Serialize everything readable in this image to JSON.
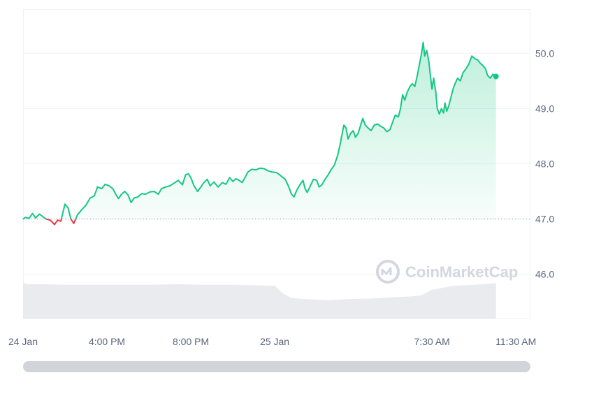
{
  "chart_data": {
    "type": "line",
    "ylim": [
      45.2,
      50.8
    ],
    "yticks": [
      {
        "value": 46.0,
        "label": "46.0"
      },
      {
        "value": 47.0,
        "label": "47.0"
      },
      {
        "value": 48.0,
        "label": "48.0"
      },
      {
        "value": 49.0,
        "label": "49.0"
      },
      {
        "value": 50.0,
        "label": "50.0"
      }
    ],
    "xlim_hours": [
      12.0,
      36.16
    ],
    "xticks": [
      {
        "hour": 12.0,
        "label": "24 Jan"
      },
      {
        "hour": 16.0,
        "label": "4:00 PM"
      },
      {
        "hour": 20.0,
        "label": "8:00 PM"
      },
      {
        "hour": 24.0,
        "label": "25 Jan"
      },
      {
        "hour": 31.5,
        "label": "7:30 AM"
      },
      {
        "hour": 35.5,
        "label": "11:30 AM"
      }
    ],
    "baseline": 47.0,
    "colors": {
      "up": "#16c784",
      "down": "#ea3943",
      "volume": "#e6e8ec",
      "grid": "#eff2f5"
    },
    "price_series": [
      [
        12.0,
        47.0
      ],
      [
        12.12,
        47.03
      ],
      [
        12.28,
        47.01
      ],
      [
        12.45,
        47.1
      ],
      [
        12.6,
        47.02
      ],
      [
        12.78,
        47.09
      ],
      [
        12.95,
        47.04
      ],
      [
        13.1,
        47.0
      ],
      [
        13.3,
        46.98
      ],
      [
        13.5,
        46.9
      ],
      [
        13.65,
        46.98
      ],
      [
        13.8,
        46.96
      ],
      [
        14.0,
        47.27
      ],
      [
        14.15,
        47.2
      ],
      [
        14.28,
        47.0
      ],
      [
        14.42,
        46.92
      ],
      [
        14.6,
        47.08
      ],
      [
        14.8,
        47.17
      ],
      [
        15.0,
        47.25
      ],
      [
        15.2,
        47.38
      ],
      [
        15.4,
        47.42
      ],
      [
        15.55,
        47.58
      ],
      [
        15.75,
        47.55
      ],
      [
        15.92,
        47.63
      ],
      [
        16.1,
        47.6
      ],
      [
        16.28,
        47.55
      ],
      [
        16.45,
        47.43
      ],
      [
        16.55,
        47.37
      ],
      [
        16.7,
        47.45
      ],
      [
        16.85,
        47.5
      ],
      [
        17.0,
        47.44
      ],
      [
        17.15,
        47.3
      ],
      [
        17.3,
        47.38
      ],
      [
        17.48,
        47.4
      ],
      [
        17.65,
        47.46
      ],
      [
        17.85,
        47.45
      ],
      [
        18.05,
        47.49
      ],
      [
        18.25,
        47.5
      ],
      [
        18.45,
        47.45
      ],
      [
        18.6,
        47.55
      ],
      [
        18.8,
        47.58
      ],
      [
        19.0,
        47.6
      ],
      [
        19.2,
        47.65
      ],
      [
        19.4,
        47.7
      ],
      [
        19.6,
        47.62
      ],
      [
        19.75,
        47.8
      ],
      [
        19.88,
        47.82
      ],
      [
        20.0,
        47.75
      ],
      [
        20.15,
        47.6
      ],
      [
        20.32,
        47.5
      ],
      [
        20.48,
        47.58
      ],
      [
        20.6,
        47.65
      ],
      [
        20.78,
        47.72
      ],
      [
        20.92,
        47.6
      ],
      [
        21.1,
        47.67
      ],
      [
        21.3,
        47.58
      ],
      [
        21.5,
        47.66
      ],
      [
        21.68,
        47.63
      ],
      [
        21.85,
        47.75
      ],
      [
        22.0,
        47.68
      ],
      [
        22.15,
        47.73
      ],
      [
        22.3,
        47.7
      ],
      [
        22.45,
        47.66
      ],
      [
        22.58,
        47.75
      ],
      [
        22.72,
        47.85
      ],
      [
        22.9,
        47.9
      ],
      [
        23.1,
        47.89
      ],
      [
        23.3,
        47.92
      ],
      [
        23.5,
        47.91
      ],
      [
        23.7,
        47.87
      ],
      [
        23.9,
        47.85
      ],
      [
        24.1,
        47.84
      ],
      [
        24.3,
        47.78
      ],
      [
        24.5,
        47.72
      ],
      [
        24.65,
        47.6
      ],
      [
        24.8,
        47.45
      ],
      [
        24.92,
        47.4
      ],
      [
        25.05,
        47.52
      ],
      [
        25.2,
        47.62
      ],
      [
        25.35,
        47.7
      ],
      [
        25.45,
        47.55
      ],
      [
        25.55,
        47.48
      ],
      [
        25.7,
        47.6
      ],
      [
        25.85,
        47.72
      ],
      [
        26.0,
        47.7
      ],
      [
        26.12,
        47.58
      ],
      [
        26.25,
        47.62
      ],
      [
        26.4,
        47.72
      ],
      [
        26.55,
        47.8
      ],
      [
        26.7,
        47.9
      ],
      [
        26.85,
        47.98
      ],
      [
        27.0,
        48.15
      ],
      [
        27.12,
        48.35
      ],
      [
        27.22,
        48.55
      ],
      [
        27.3,
        48.7
      ],
      [
        27.4,
        48.65
      ],
      [
        27.5,
        48.45
      ],
      [
        27.62,
        48.55
      ],
      [
        27.75,
        48.6
      ],
      [
        27.85,
        48.48
      ],
      [
        27.98,
        48.55
      ],
      [
        28.1,
        48.7
      ],
      [
        28.2,
        48.82
      ],
      [
        28.32,
        48.7
      ],
      [
        28.45,
        48.65
      ],
      [
        28.6,
        48.6
      ],
      [
        28.75,
        48.7
      ],
      [
        28.9,
        48.72
      ],
      [
        29.05,
        48.68
      ],
      [
        29.2,
        48.65
      ],
      [
        29.35,
        48.58
      ],
      [
        29.5,
        48.62
      ],
      [
        29.62,
        48.75
      ],
      [
        29.75,
        48.88
      ],
      [
        29.9,
        48.85
      ],
      [
        30.0,
        49.0
      ],
      [
        30.1,
        49.25
      ],
      [
        30.2,
        49.15
      ],
      [
        30.32,
        49.3
      ],
      [
        30.45,
        49.4
      ],
      [
        30.55,
        49.45
      ],
      [
        30.68,
        49.4
      ],
      [
        30.8,
        49.6
      ],
      [
        30.9,
        49.8
      ],
      [
        31.0,
        50.0
      ],
      [
        31.08,
        50.2
      ],
      [
        31.15,
        49.95
      ],
      [
        31.25,
        50.05
      ],
      [
        31.35,
        49.85
      ],
      [
        31.42,
        49.6
      ],
      [
        31.5,
        49.35
      ],
      [
        31.58,
        49.55
      ],
      [
        31.68,
        49.3
      ],
      [
        31.75,
        49.0
      ],
      [
        31.85,
        48.9
      ],
      [
        31.95,
        49.0
      ],
      [
        32.05,
        48.92
      ],
      [
        32.12,
        49.1
      ],
      [
        32.2,
        48.95
      ],
      [
        32.3,
        49.05
      ],
      [
        32.4,
        49.2
      ],
      [
        32.5,
        49.35
      ],
      [
        32.6,
        49.45
      ],
      [
        32.72,
        49.55
      ],
      [
        32.85,
        49.5
      ],
      [
        32.98,
        49.65
      ],
      [
        33.12,
        49.72
      ],
      [
        33.25,
        49.8
      ],
      [
        33.4,
        49.95
      ],
      [
        33.55,
        49.9
      ],
      [
        33.68,
        49.88
      ],
      [
        33.8,
        49.82
      ],
      [
        33.92,
        49.78
      ],
      [
        34.05,
        49.72
      ],
      [
        34.15,
        49.6
      ],
      [
        34.28,
        49.55
      ],
      [
        34.4,
        49.62
      ],
      [
        34.55,
        49.58
      ]
    ],
    "volume_series": [
      [
        12.0,
        45.85
      ],
      [
        12.2,
        45.82
      ],
      [
        13.0,
        45.82
      ],
      [
        14.0,
        45.81
      ],
      [
        16.0,
        45.81
      ],
      [
        18.0,
        45.81
      ],
      [
        19.5,
        45.82
      ],
      [
        20.5,
        45.81
      ],
      [
        22.0,
        45.81
      ],
      [
        23.0,
        45.8
      ],
      [
        24.0,
        45.79
      ],
      [
        24.4,
        45.65
      ],
      [
        24.8,
        45.57
      ],
      [
        25.5,
        45.55
      ],
      [
        26.5,
        45.53
      ],
      [
        27.5,
        45.55
      ],
      [
        28.5,
        45.56
      ],
      [
        29.5,
        45.58
      ],
      [
        30.5,
        45.6
      ],
      [
        31.0,
        45.62
      ],
      [
        31.5,
        45.72
      ],
      [
        32.5,
        45.79
      ],
      [
        33.5,
        45.81
      ],
      [
        34.55,
        45.84
      ]
    ],
    "watermark": "CoinMarketCap"
  },
  "scrollbar": {
    "position": 1.0,
    "thumb_fraction": 1.0
  }
}
